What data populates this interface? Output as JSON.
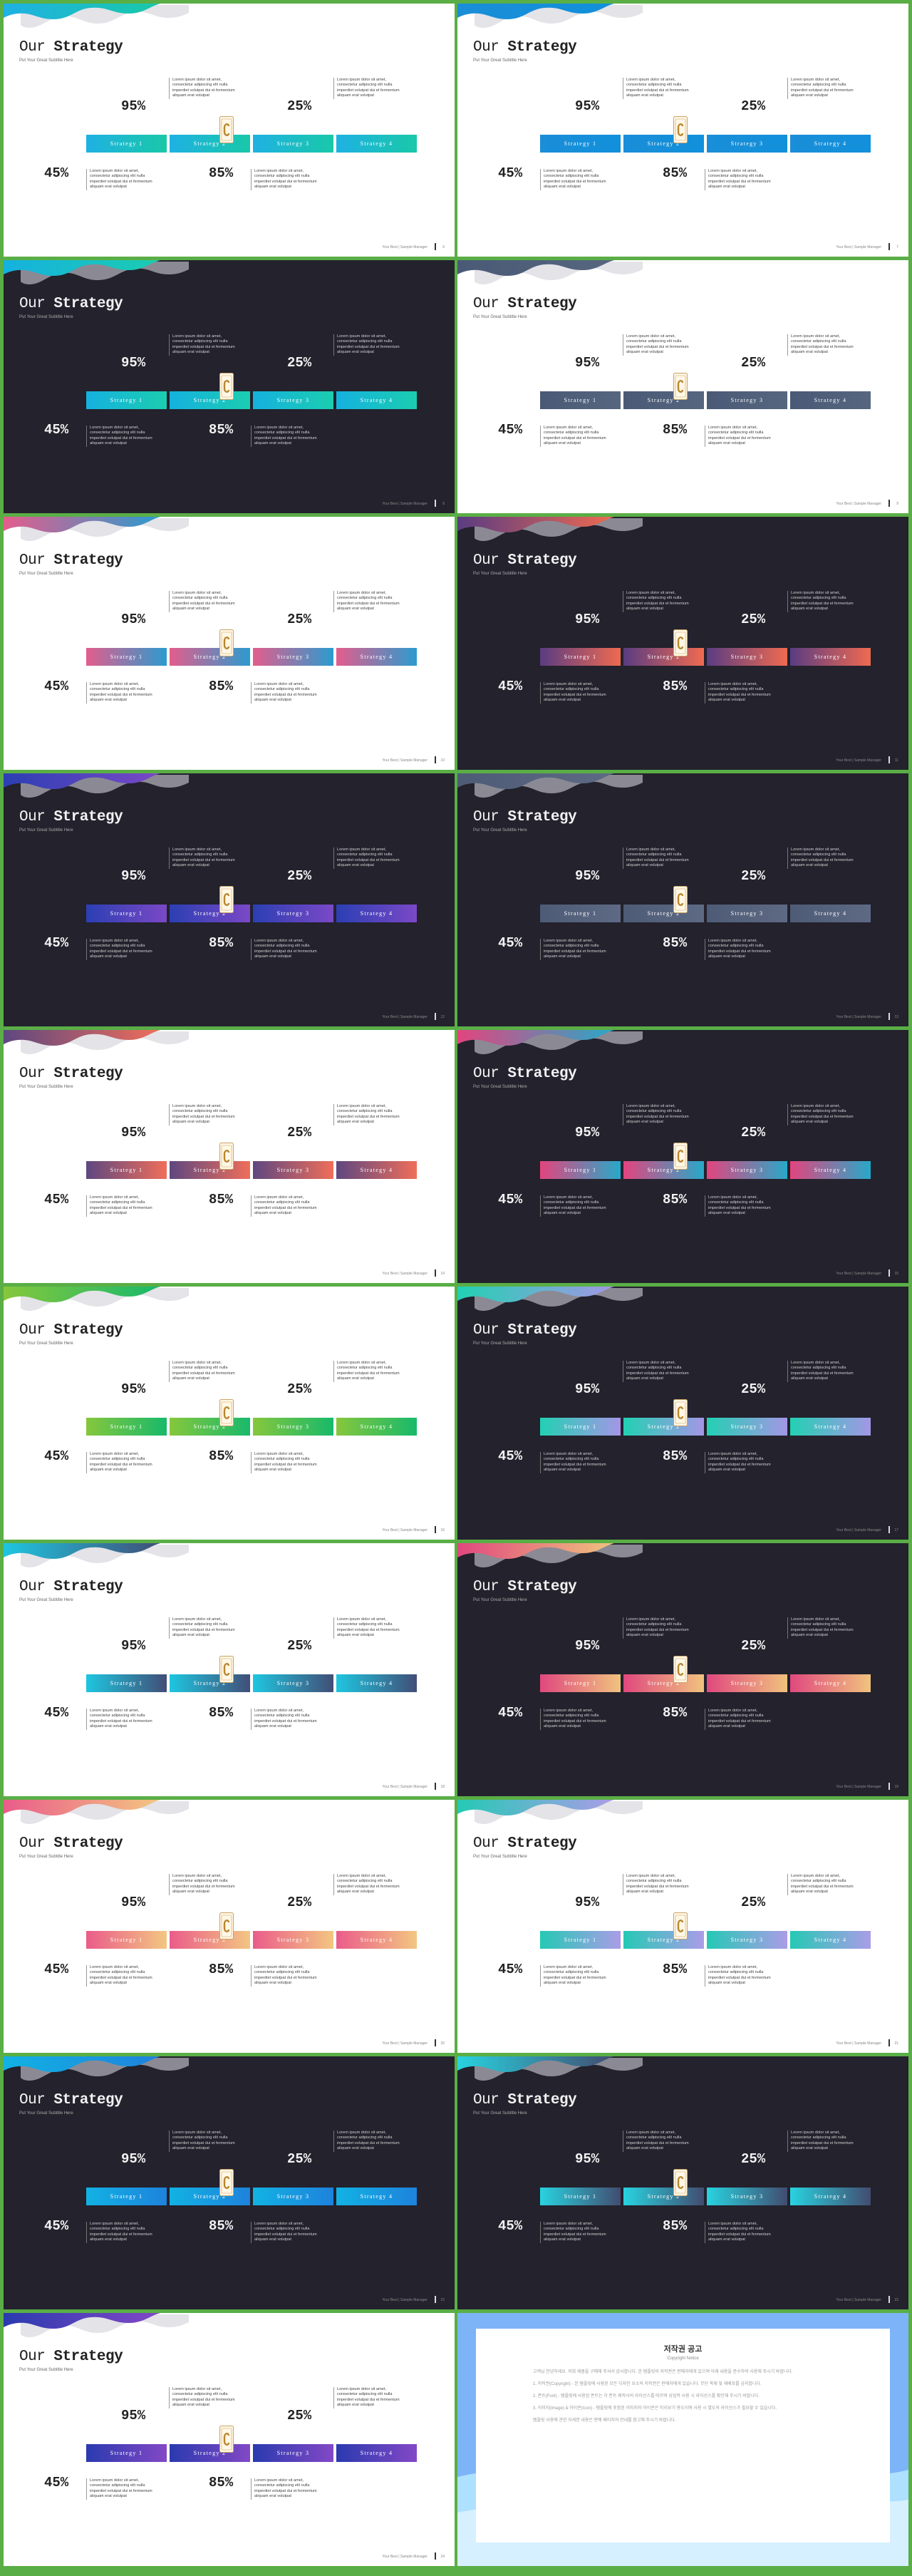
{
  "slide_text": {
    "title_prefix": "Our",
    "title_bold": "Strategy",
    "subtitle": "Put Your Great Subtitle Here",
    "percentages": [
      "45%",
      "95%",
      "85%",
      "25%"
    ],
    "bar_labels": [
      "Strategy 1",
      "Strategy 2",
      "Strategy 3",
      "Strategy 4"
    ],
    "body_text": "Lorem ipsum dolor sit amet, consectetur adipiscing elit nulla imperdiet volutpat dui et fermentum aliquam erat volutpat",
    "footer": "Your Best  |  Sample Manager"
  },
  "slides": [
    {
      "dark": false,
      "page": "6",
      "colors": [
        "#1fb1e3",
        "#19c8a8"
      ]
    },
    {
      "dark": false,
      "page": "7",
      "colors": [
        "#1a8ed8",
        "#1290db"
      ]
    },
    {
      "dark": true,
      "page": "8",
      "colors": [
        "#15b1df",
        "#1bcdb0"
      ]
    },
    {
      "dark": false,
      "page": "9",
      "colors": [
        "#4a5a76",
        "#56667f"
      ]
    },
    {
      "dark": false,
      "page": "10",
      "colors": [
        "#e35d8c",
        "#2b9bcf"
      ]
    },
    {
      "dark": true,
      "page": "11",
      "colors": [
        "#5a3c82",
        "#ef6a50"
      ]
    },
    {
      "dark": true,
      "page": "12",
      "colors": [
        "#2b3fb3",
        "#7b48c6"
      ]
    },
    {
      "dark": true,
      "page": "13",
      "colors": [
        "#4e5b76",
        "#5e6a84"
      ]
    },
    {
      "dark": false,
      "page": "14",
      "colors": [
        "#5e4780",
        "#ef6e5a"
      ]
    },
    {
      "dark": true,
      "page": "15",
      "colors": [
        "#e3447e",
        "#27a9c9"
      ]
    },
    {
      "dark": false,
      "page": "16",
      "colors": [
        "#86c73c",
        "#18b96b"
      ]
    },
    {
      "dark": true,
      "page": "17",
      "colors": [
        "#22d1b3",
        "#a496e6"
      ]
    },
    {
      "dark": false,
      "page": "18",
      "colors": [
        "#1ec6e0",
        "#424e77"
      ]
    },
    {
      "dark": true,
      "page": "19",
      "colors": [
        "#e0487e",
        "#f0c37e"
      ]
    },
    {
      "dark": false,
      "page": "20",
      "colors": [
        "#ea5c8a",
        "#f3c681"
      ]
    },
    {
      "dark": false,
      "page": "21",
      "colors": [
        "#25c9b5",
        "#ab9ce8"
      ]
    },
    {
      "dark": true,
      "page": "22",
      "colors": [
        "#12b2e3",
        "#1e82dc"
      ]
    },
    {
      "dark": true,
      "page": "23",
      "colors": [
        "#28d3e0",
        "#424c70"
      ]
    },
    {
      "dark": false,
      "page": "24",
      "colors": [
        "#2a3aaf",
        "#8348c6"
      ]
    }
  ],
  "notice": {
    "title": "저작권 공고",
    "subtitle": "Copyright Notice",
    "paragraphs": [
      "고객님 안녕하세요. 저희 제품을 구매해 주셔서 감사합니다. 본 템플릿의 저작권은 판매자에게 있으며 아래 내용을 준수하여 사용해 주시기 바랍니다.",
      "1. 저작권(Copyright) - 본 템플릿에 사용된 모든 디자인 요소의 저작권은 판매자에게 있습니다. 무단 복제 및 재배포를 금지합니다.",
      "2. 폰트(Font) - 템플릿에 사용된 폰트는 각 폰트 제작사의 라이선스를 따르며 상업적 사용 시 라이선스를 확인해 주시기 바랍니다.",
      "3. 이미지(Image) & 아이콘(Icon) - 템플릿에 포함된 이미지와 아이콘은 미리보기 용도이며 사용 시 별도의 라이선스가 필요할 수 있습니다.",
      "템플릿 사용에 관한 자세한 내용은 판매 페이지의 안내를 참고해 주시기 바랍니다."
    ]
  }
}
